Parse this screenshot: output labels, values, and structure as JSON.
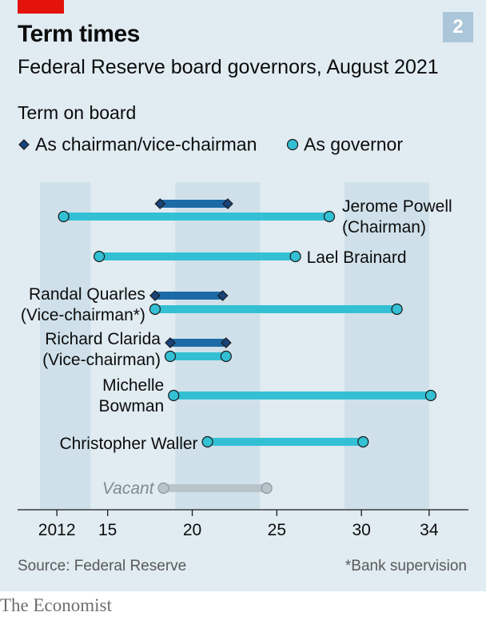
{
  "header": {
    "title": "Term times",
    "subtitle": "Federal Reserve board governors, August 2021",
    "badge": "2"
  },
  "section_label": "Term on board",
  "legend": {
    "chair": "As chairman/vice-chairman",
    "governor": "As governor"
  },
  "footer": {
    "source": "Source: Federal Reserve",
    "footnote": "*Bank supervision",
    "brand": "The Economist"
  },
  "colors": {
    "background": "#e0ebf2",
    "shade_band": "#cfe0ea",
    "chair_bar": "#1c6aa6",
    "chair_marker": "#19437a",
    "governor_bar": "#33c0d4",
    "vacant_bar": "#b9c4ca",
    "marker_edge": "#1a1a1a",
    "red_tag": "#e3120b"
  },
  "chart_data": {
    "type": "range",
    "xlim": [
      2011,
      2035
    ],
    "x_ticks": [
      2012,
      2015,
      2020,
      2025,
      2030,
      2034
    ],
    "x_tick_labels": [
      "2012",
      "15",
      "20",
      "25",
      "30",
      "34"
    ],
    "shaded_bands": [
      [
        2011,
        2014
      ],
      [
        2019,
        2024
      ],
      [
        2029,
        2034
      ]
    ],
    "rows": [
      {
        "label": [
          "Jerome Powell",
          "(Chairman)"
        ],
        "label_side": "right",
        "chair": [
          2018.1,
          2022.1
        ],
        "governor": [
          2012.4,
          2028.1
        ]
      },
      {
        "label": [
          "Lael Brainard"
        ],
        "label_side": "right",
        "governor": [
          2014.5,
          2026.1
        ]
      },
      {
        "label": [
          "Randal Quarles",
          "(Vice-chairman*)"
        ],
        "label_side": "left",
        "chair": [
          2017.8,
          2021.8
        ],
        "governor": [
          2017.8,
          2032.1
        ]
      },
      {
        "label": [
          "Richard Clarida",
          "(Vice-chairman)"
        ],
        "label_side": "left",
        "chair": [
          2018.7,
          2022.0
        ],
        "governor": [
          2018.7,
          2022.0
        ]
      },
      {
        "label": [
          "Michelle",
          "Bowman"
        ],
        "label_side": "left",
        "governor": [
          2018.9,
          2034.1
        ]
      },
      {
        "label": [
          "Christopher Waller"
        ],
        "label_side": "left",
        "governor": [
          2020.9,
          2030.1
        ]
      },
      {
        "label": [
          "Vacant"
        ],
        "label_side": "left",
        "vacant": true,
        "governor": [
          2018.3,
          2024.4
        ]
      }
    ]
  }
}
